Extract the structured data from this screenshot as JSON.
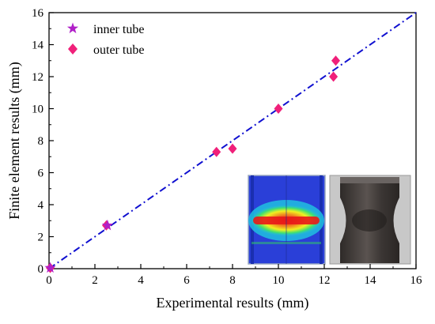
{
  "chart_data": {
    "type": "scatter",
    "title": "",
    "xlabel": "Experimental results (mm)",
    "ylabel": "Finite element results (mm)",
    "xlim": [
      0,
      16
    ],
    "ylim": [
      0,
      16
    ],
    "xticks": [
      0,
      2,
      4,
      6,
      8,
      10,
      12,
      14,
      16
    ],
    "yticks": [
      0,
      2,
      4,
      6,
      8,
      10,
      12,
      14,
      16
    ],
    "grid": false,
    "legend_position": "top-left",
    "series": [
      {
        "name": "inner tube",
        "marker": "star",
        "color": "#B020C8",
        "points": [
          {
            "x": 0.05,
            "y": 0.05
          },
          {
            "x": 2.55,
            "y": 2.7
          }
        ]
      },
      {
        "name": "outer tube",
        "marker": "diamond",
        "color": "#F0207A",
        "points": [
          {
            "x": 0.05,
            "y": 0.05
          },
          {
            "x": 2.5,
            "y": 2.7
          },
          {
            "x": 7.3,
            "y": 7.3
          },
          {
            "x": 8.0,
            "y": 7.5
          },
          {
            "x": 10.0,
            "y": 10.0
          },
          {
            "x": 12.4,
            "y": 12.0
          },
          {
            "x": 12.5,
            "y": 13.0
          }
        ]
      }
    ],
    "reference_line": {
      "style": "dash-dot",
      "color": "#1010D0",
      "from": {
        "x": 0,
        "y": 0
      },
      "to": {
        "x": 16,
        "y": 16
      }
    },
    "insets": [
      {
        "kind": "fe-contour-image",
        "palette": [
          "#2a3fd8",
          "#20c0e0",
          "#40e070",
          "#f0f020",
          "#f08020",
          "#e81818"
        ]
      },
      {
        "kind": "photograph",
        "palette": [
          "#c8c8c8",
          "#4a4644",
          "#2e2a28"
        ]
      }
    ]
  }
}
